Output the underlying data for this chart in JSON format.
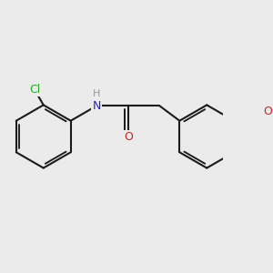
{
  "bg_color": "#ebebeb",
  "bond_color": "#1a1a1a",
  "bond_width": 1.5,
  "atom_colors": {
    "Cl": "#22aa22",
    "N": "#2222cc",
    "O": "#cc2222",
    "H": "#999999"
  },
  "font_size": 8.5,
  "fig_width": 3.0,
  "fig_height": 3.0,
  "xlim": [
    0.5,
    7.5
  ],
  "ylim": [
    0.5,
    5.5
  ]
}
